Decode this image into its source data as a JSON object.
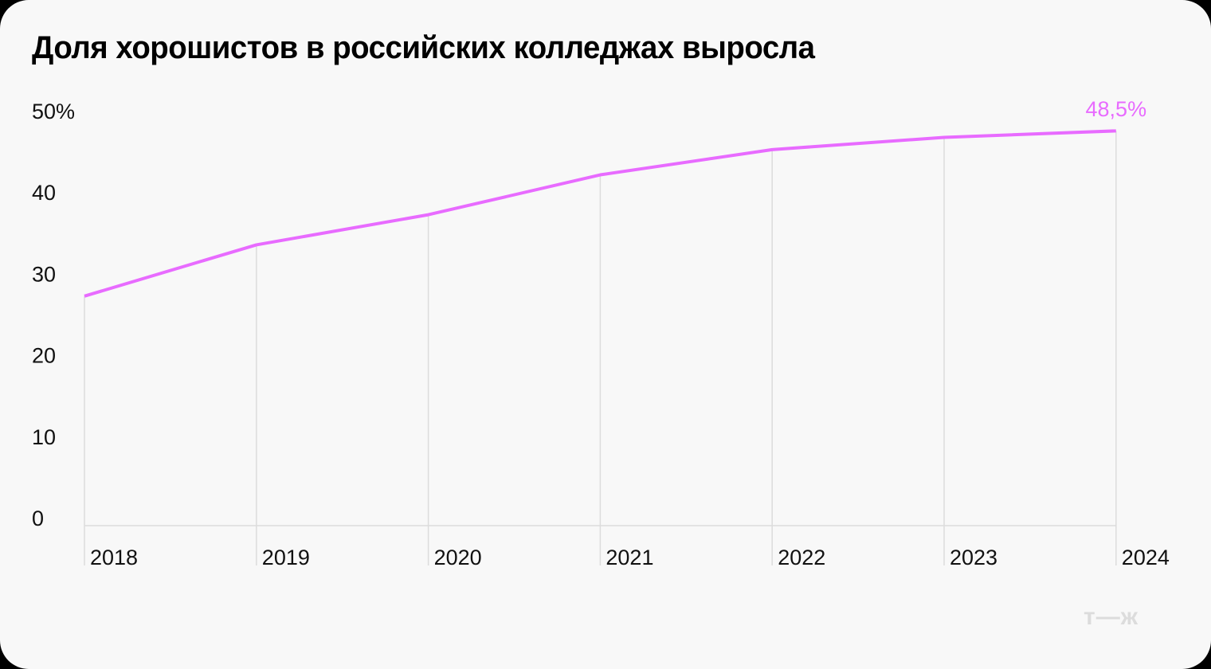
{
  "title": "Доля хорошистов в российских колледжах выросла",
  "colors": {
    "background": "#f8f8f8",
    "line": "#e86bff",
    "annotation": "#e86bff",
    "grid": "#dcdcdc",
    "text": "#111111",
    "logo": "#dcdcdc"
  },
  "logo": "т—ж",
  "chart_data": {
    "type": "line",
    "title": "Доля хорошистов в российских колледжах выросла",
    "xlabel": "",
    "ylabel": "",
    "categories": [
      "2018",
      "2019",
      "2020",
      "2021",
      "2022",
      "2023",
      "2024"
    ],
    "series": [
      {
        "name": "Доля хорошистов, %",
        "values": [
          28.2,
          34.5,
          38.2,
          43.1,
          46.2,
          47.7,
          48.5
        ]
      }
    ],
    "y_ticks": [
      "0",
      "10",
      "20",
      "30",
      "40",
      "50%"
    ],
    "ylim": [
      0,
      50
    ],
    "grid": "vertical lines at each year",
    "legend": "none",
    "annotations": [
      {
        "x": "2024",
        "text": "48,5%"
      }
    ]
  }
}
